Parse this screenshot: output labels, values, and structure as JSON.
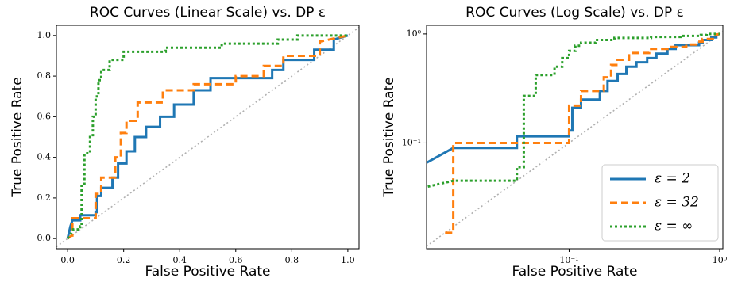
{
  "chart_data": [
    {
      "type": "line",
      "title": "ROC Curves (Linear Scale) vs. DP ε",
      "xlabel": "False Positive Rate",
      "ylabel": "True Positive Rate",
      "xlim": [
        -0.04,
        1.04
      ],
      "ylim": [
        -0.05,
        1.05
      ],
      "xticks": [
        {
          "value": 0,
          "label": "0.0"
        },
        0.2,
        0.4,
        0.6,
        0.8,
        {
          "value": 1,
          "label": "1.0"
        }
      ],
      "yticks": [
        {
          "value": 0,
          "label": "0.0"
        },
        0.2,
        0.4,
        0.6,
        0.8,
        {
          "value": 1,
          "label": "1.0"
        }
      ],
      "series": [
        {
          "name": "ε = 2",
          "color": "#1f77b4",
          "style": "solid",
          "x": [
            0,
            0.01,
            0.017,
            0.045,
            0.045,
            0.1,
            0.1,
            0.105,
            0.105,
            0.12,
            0.12,
            0.16,
            0.16,
            0.18,
            0.18,
            0.21,
            0.21,
            0.24,
            0.24,
            0.28,
            0.28,
            0.33,
            0.33,
            0.38,
            0.38,
            0.45,
            0.45,
            0.51,
            0.51,
            0.73,
            0.73,
            0.77,
            0.77,
            0.88,
            0.88,
            0.95,
            0.95,
            1
          ],
          "values": [
            0,
            0.06,
            0.09,
            0.09,
            0.115,
            0.115,
            0.13,
            0.13,
            0.21,
            0.21,
            0.25,
            0.25,
            0.3,
            0.3,
            0.37,
            0.37,
            0.43,
            0.43,
            0.5,
            0.5,
            0.55,
            0.55,
            0.6,
            0.6,
            0.66,
            0.66,
            0.73,
            0.73,
            0.79,
            0.79,
            0.83,
            0.83,
            0.88,
            0.88,
            0.93,
            0.93,
            0.98,
            1
          ]
        },
        {
          "name": "ε = 32",
          "color": "#ff7f0e",
          "style": "dashed",
          "x": [
            0,
            0.015,
            0.017,
            0.017,
            0.1,
            0.1,
            0.12,
            0.12,
            0.17,
            0.17,
            0.19,
            0.19,
            0.21,
            0.21,
            0.25,
            0.25,
            0.34,
            0.34,
            0.45,
            0.45,
            0.6,
            0.6,
            0.7,
            0.7,
            0.77,
            0.77,
            0.9,
            0.9,
            1
          ],
          "values": [
            0,
            0.015,
            0.015,
            0.1,
            0.1,
            0.22,
            0.22,
            0.3,
            0.3,
            0.4,
            0.4,
            0.52,
            0.52,
            0.58,
            0.58,
            0.67,
            0.67,
            0.73,
            0.73,
            0.76,
            0.76,
            0.8,
            0.8,
            0.85,
            0.85,
            0.9,
            0.9,
            0.97,
            1
          ]
        },
        {
          "name": "ε = ∞",
          "color": "#2ca02c",
          "style": "dotted",
          "x": [
            0,
            0.02,
            0.02,
            0.045,
            0.045,
            0.05,
            0.05,
            0.06,
            0.06,
            0.08,
            0.08,
            0.09,
            0.09,
            0.1,
            0.1,
            0.11,
            0.11,
            0.12,
            0.12,
            0.15,
            0.15,
            0.2,
            0.2,
            0.35,
            0.35,
            0.55,
            0.55,
            0.75,
            0.75,
            0.82,
            0.82,
            1
          ],
          "values": [
            0,
            0.04,
            0.045,
            0.045,
            0.06,
            0.06,
            0.27,
            0.27,
            0.42,
            0.42,
            0.5,
            0.5,
            0.6,
            0.6,
            0.7,
            0.7,
            0.78,
            0.78,
            0.83,
            0.83,
            0.88,
            0.88,
            0.92,
            0.92,
            0.94,
            0.94,
            0.96,
            0.96,
            0.98,
            0.98,
            1,
            1
          ]
        }
      ]
    },
    {
      "type": "line",
      "title": "ROC Curves (Log Scale) vs. DP ε",
      "xlabel": "False Positive Rate",
      "ylabel": "True Positive Rate",
      "xscale": "log",
      "yscale": "log",
      "legend": "lower right",
      "xlim": [
        0.0113,
        1.05
      ],
      "ylim": [
        0.0107,
        1.2
      ],
      "xticks": [
        {
          "value": 0.1,
          "label": "10⁻¹"
        },
        {
          "value": 1,
          "label": "10⁰"
        }
      ],
      "yticks": [
        {
          "value": 0.1,
          "label": "10⁻¹"
        },
        {
          "value": 1,
          "label": "10⁰"
        }
      ],
      "series": [
        {
          "name": "ε = 2",
          "color": "#1f77b4",
          "style": "solid",
          "x": [
            0.01,
            0.017,
            0.045,
            0.045,
            0.1,
            0.1,
            0.105,
            0.105,
            0.12,
            0.12,
            0.16,
            0.16,
            0.18,
            0.18,
            0.21,
            0.21,
            0.24,
            0.24,
            0.28,
            0.28,
            0.33,
            0.33,
            0.38,
            0.38,
            0.45,
            0.45,
            0.51,
            0.51,
            0.73,
            0.73,
            0.77,
            0.77,
            0.88,
            0.88,
            0.95,
            0.95,
            1
          ],
          "values": [
            0.06,
            0.09,
            0.09,
            0.115,
            0.115,
            0.13,
            0.13,
            0.21,
            0.21,
            0.25,
            0.25,
            0.3,
            0.3,
            0.37,
            0.37,
            0.43,
            0.43,
            0.5,
            0.5,
            0.55,
            0.55,
            0.6,
            0.6,
            0.66,
            0.66,
            0.73,
            0.73,
            0.79,
            0.79,
            0.83,
            0.83,
            0.88,
            0.88,
            0.93,
            0.93,
            0.98,
            1
          ]
        },
        {
          "name": "ε = 32",
          "color": "#ff7f0e",
          "style": "dashed",
          "x": [
            0.015,
            0.017,
            0.017,
            0.1,
            0.1,
            0.12,
            0.12,
            0.17,
            0.17,
            0.19,
            0.19,
            0.21,
            0.21,
            0.25,
            0.25,
            0.34,
            0.34,
            0.45,
            0.45,
            0.6,
            0.6,
            0.7,
            0.7,
            0.77,
            0.77,
            0.9,
            0.9,
            1
          ],
          "values": [
            0.015,
            0.015,
            0.1,
            0.1,
            0.22,
            0.22,
            0.3,
            0.3,
            0.4,
            0.4,
            0.52,
            0.52,
            0.58,
            0.58,
            0.67,
            0.67,
            0.73,
            0.73,
            0.76,
            0.76,
            0.8,
            0.8,
            0.85,
            0.85,
            0.9,
            0.9,
            0.97,
            1
          ]
        },
        {
          "name": "ε = ∞",
          "color": "#2ca02c",
          "style": "dotted",
          "x": [
            0.01,
            0.017,
            0.045,
            0.045,
            0.05,
            0.05,
            0.06,
            0.06,
            0.08,
            0.08,
            0.09,
            0.09,
            0.1,
            0.1,
            0.11,
            0.11,
            0.12,
            0.12,
            0.15,
            0.15,
            0.2,
            0.2,
            0.35,
            0.35,
            0.55,
            0.55,
            0.75,
            0.75,
            0.82,
            0.82,
            1
          ],
          "values": [
            0.038,
            0.045,
            0.045,
            0.06,
            0.06,
            0.27,
            0.27,
            0.42,
            0.42,
            0.5,
            0.5,
            0.6,
            0.6,
            0.7,
            0.7,
            0.78,
            0.78,
            0.83,
            0.83,
            0.88,
            0.88,
            0.92,
            0.92,
            0.94,
            0.94,
            0.96,
            0.96,
            0.98,
            0.98,
            1,
            1
          ]
        }
      ]
    }
  ]
}
